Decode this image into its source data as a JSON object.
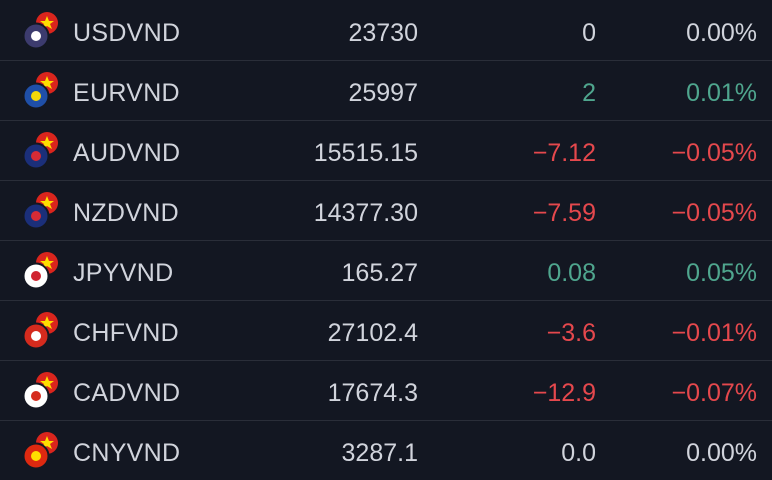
{
  "table": {
    "rows": [
      [
        "USDVND",
        "23730",
        "0",
        "0.00%"
      ],
      [
        "EURVND",
        "25997",
        "2",
        "0.01%"
      ],
      [
        "AUDVND",
        "15515.15",
        "−7.12",
        "−0.05%"
      ],
      [
        "NZDVND",
        "14377.30",
        "−7.59",
        "−0.05%"
      ],
      [
        "JPYVND",
        "165.27",
        "0.08",
        "0.05%"
      ],
      [
        "CHFVND",
        "27102.4",
        "−3.6",
        "−0.01%"
      ],
      [
        "CADVND",
        "17674.3",
        "−12.9",
        "−0.07%"
      ],
      [
        "CNYVND",
        "3287.1",
        "0.0",
        "0.00%"
      ]
    ]
  }
}
